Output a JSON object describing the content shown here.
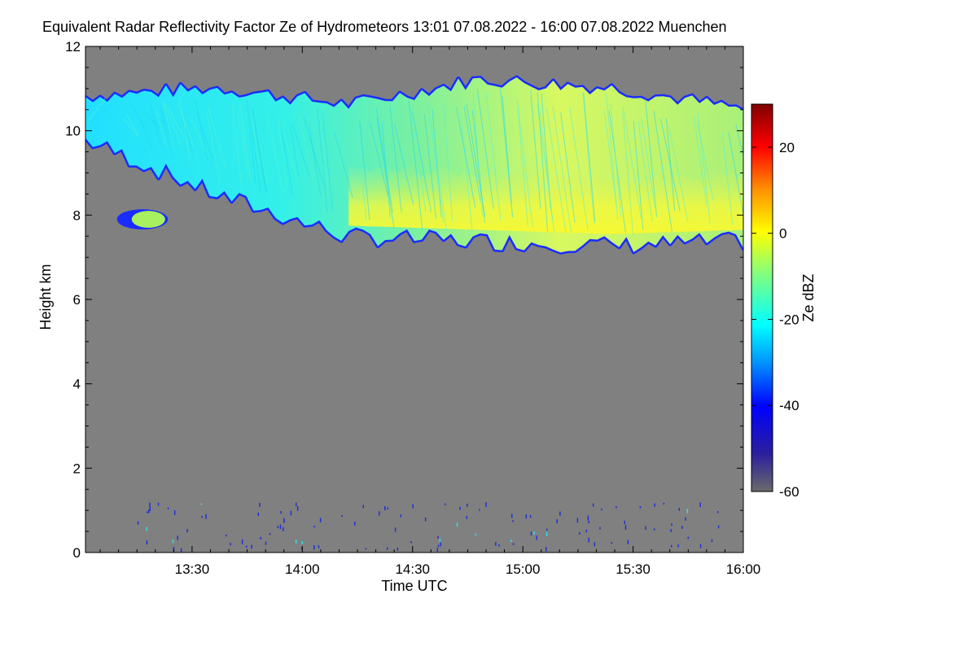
{
  "title": "Equivalent Radar Reflectivity Factor Ze of Hydrometeors   13:01 07.08.2022 - 16:00 07.08.2022 Muenchen",
  "chart_data": {
    "type": "heatmap",
    "title": "Equivalent Radar Reflectivity Factor Ze of Hydrometeors   13:01 07.08.2022 - 16:00 07.08.2022 Muenchen",
    "xlabel": "Time UTC",
    "ylabel": "Height km",
    "x_range": [
      "13:01",
      "16:00"
    ],
    "x_ticks": [
      {
        "time": "13:30",
        "label": "13:30"
      },
      {
        "time": "14:00",
        "label": "14:00"
      },
      {
        "time": "14:30",
        "label": "14:30"
      },
      {
        "time": "15:00",
        "label": "15:00"
      },
      {
        "time": "15:30",
        "label": "15:30"
      },
      {
        "time": "16:00",
        "label": "16:00"
      }
    ],
    "ylim": [
      0,
      12
    ],
    "y_ticks": [
      0,
      2,
      4,
      6,
      8,
      10,
      12
    ],
    "colorbar": {
      "label": "Ze dBZ",
      "range": [
        -60,
        30
      ],
      "ticks": [
        -60,
        -40,
        -20,
        0,
        20
      ],
      "colormap": "jet"
    },
    "background_color": "#808080",
    "features": [
      {
        "name": "main cloud layer",
        "time_start": "13:01",
        "time_end": "16:00",
        "top_km": [
          10.8,
          11.0,
          10.6,
          11.2,
          11.0,
          10.5
        ],
        "base_km": [
          9.8,
          8.5,
          7.5,
          7.4,
          7.3,
          7.4
        ],
        "max_ze_dbz": 0
      },
      {
        "name": "isolated patch near 8 km",
        "time_start": "13:10",
        "time_end": "13:23",
        "top_km": 8.1,
        "base_km": 7.7
      },
      {
        "name": "low-level clutter",
        "time_start": "13:15",
        "time_end": "15:55",
        "top_km": 1.2,
        "base_km": 0.1
      }
    ]
  }
}
